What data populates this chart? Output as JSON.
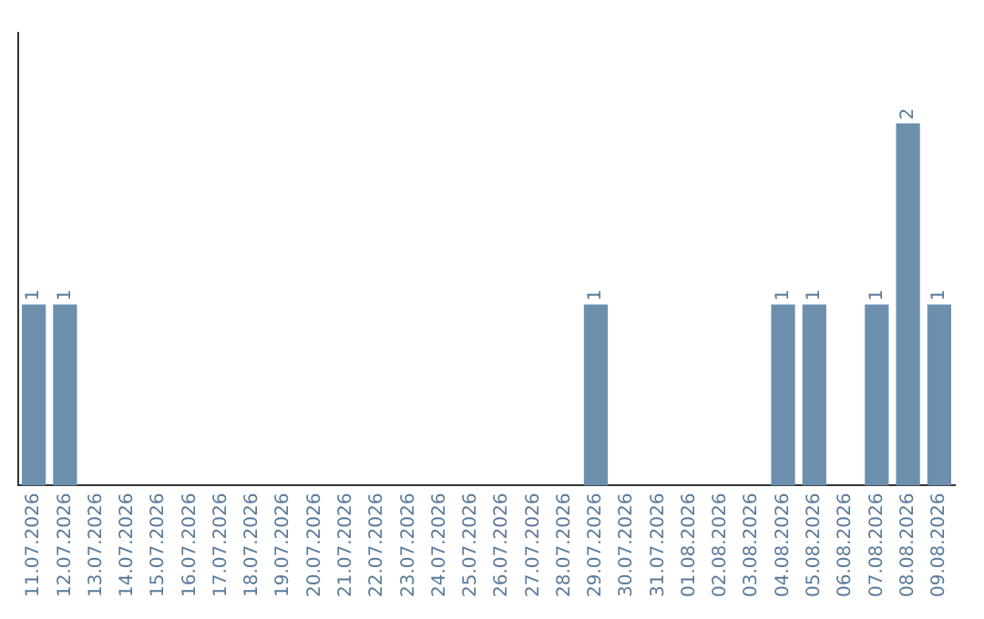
{
  "chart_data": {
    "type": "bar",
    "categories": [
      "11.07.2026",
      "12.07.2026",
      "13.07.2026",
      "14.07.2026",
      "15.07.2026",
      "16.07.2026",
      "17.07.2026",
      "18.07.2026",
      "19.07.2026",
      "20.07.2026",
      "21.07.2026",
      "22.07.2026",
      "23.07.2026",
      "24.07.2026",
      "25.07.2026",
      "26.07.2026",
      "27.07.2026",
      "28.07.2026",
      "29.07.2026",
      "30.07.2026",
      "31.07.2026",
      "01.08.2026",
      "02.08.2026",
      "03.08.2026",
      "04.08.2026",
      "05.08.2026",
      "06.08.2026",
      "07.08.2026",
      "08.08.2026",
      "09.08.2026"
    ],
    "values": [
      1,
      1,
      0,
      0,
      0,
      0,
      0,
      0,
      0,
      0,
      0,
      0,
      0,
      0,
      0,
      0,
      0,
      0,
      1,
      0,
      0,
      0,
      0,
      0,
      1,
      1,
      0,
      1,
      2,
      1
    ],
    "value_labels": [
      "1",
      "1",
      null,
      null,
      null,
      null,
      null,
      null,
      null,
      null,
      null,
      null,
      null,
      null,
      null,
      null,
      null,
      null,
      "1",
      null,
      null,
      null,
      null,
      null,
      "1",
      "1",
      null,
      "1",
      "2",
      "1"
    ],
    "color": "#6d8fae",
    "grid": false,
    "legend": false,
    "tick_labels": "x"
  }
}
